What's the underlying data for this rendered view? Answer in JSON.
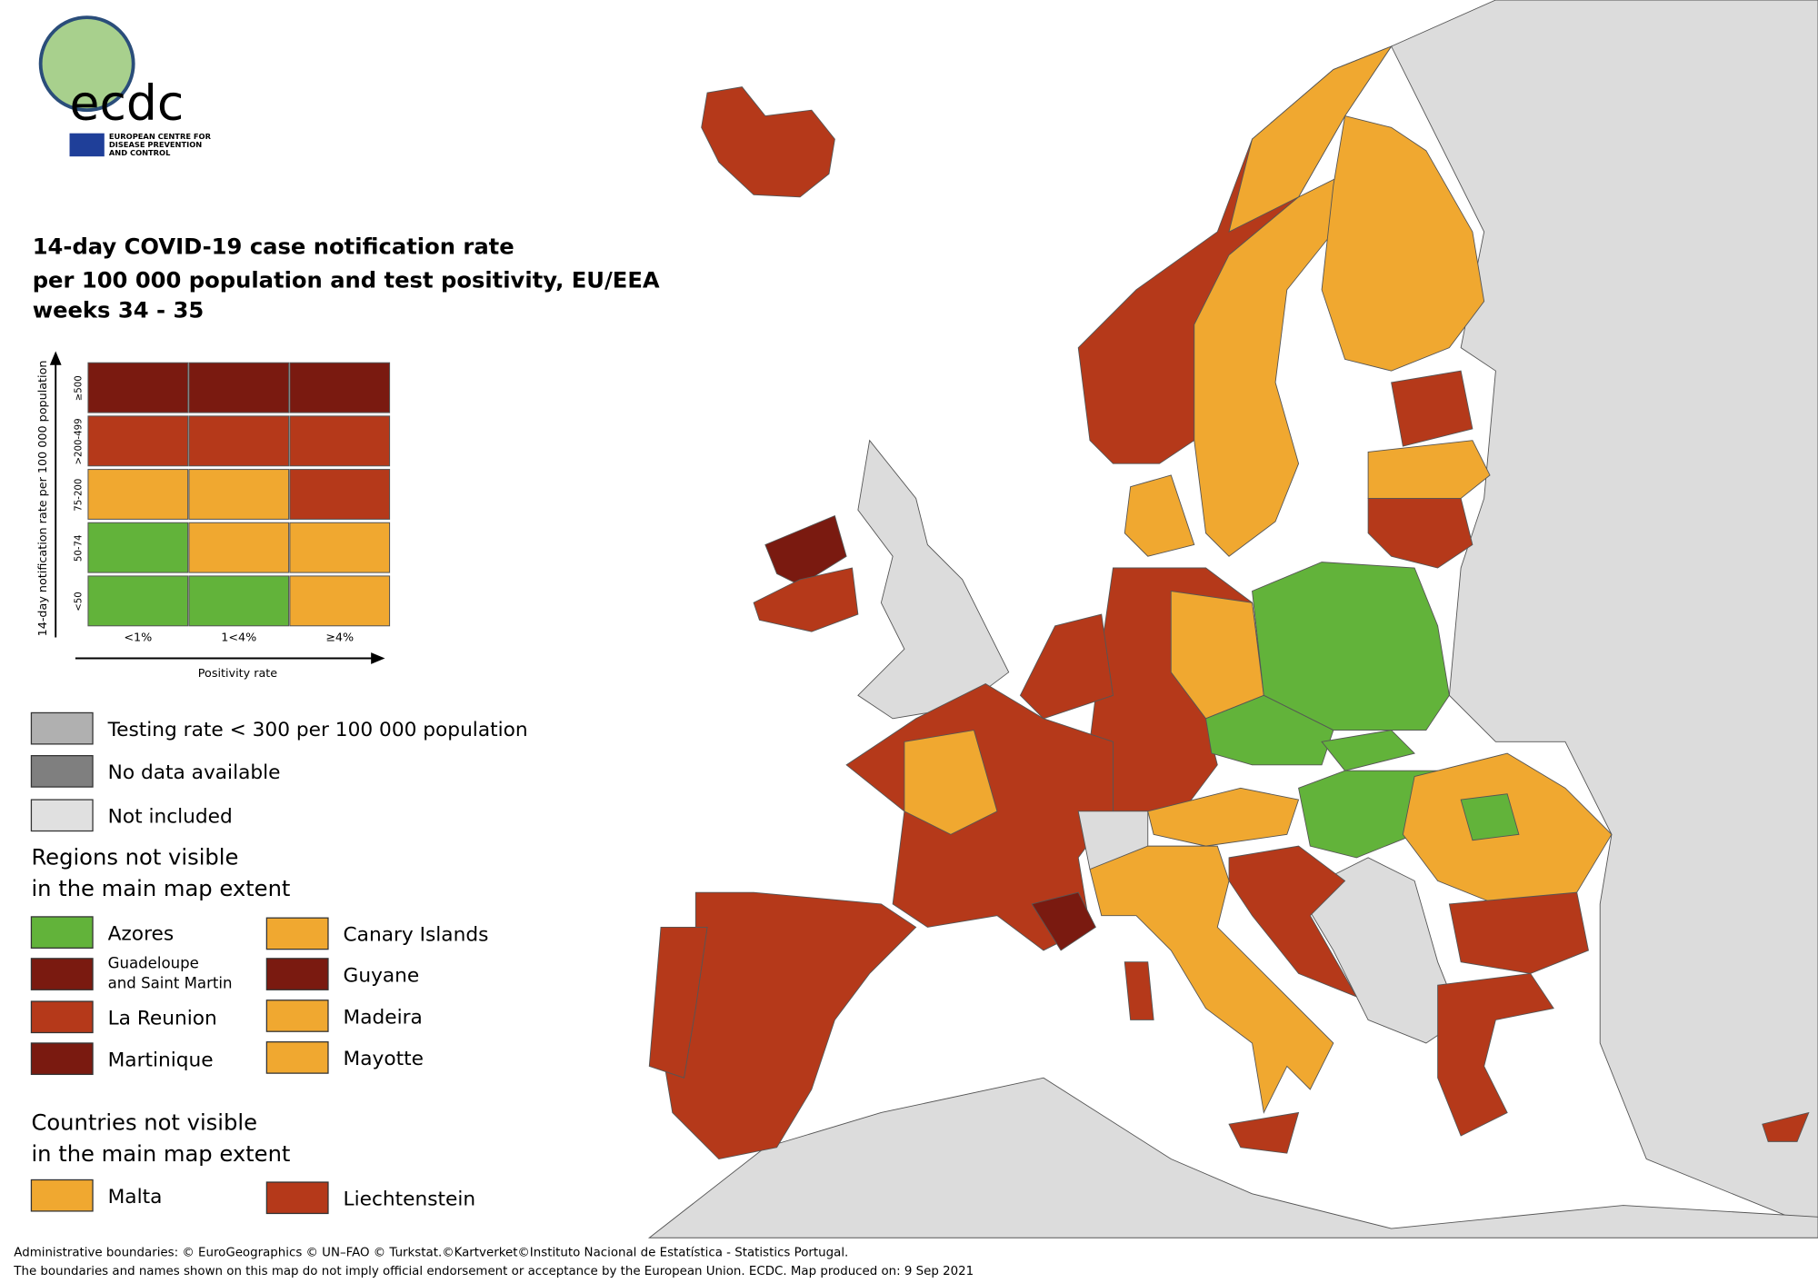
{
  "logo": {
    "name": "ecdc",
    "org_lines": [
      "EUROPEAN CENTRE FOR",
      "DISEASE PREVENTION",
      "AND CONTROL"
    ]
  },
  "header": {
    "title_lines": [
      "14-day COVID-19 case notification rate",
      "per 100 000 population and test positivity, EU/EEA",
      "weeks 34 - 35"
    ]
  },
  "matrix": {
    "y_axis_label": "14-day notification rate per 100 000 population",
    "x_axis_label": "Positivity rate",
    "rows": [
      "≥500",
      ">200-499",
      "75-200",
      "50-74",
      "<50"
    ],
    "columns": [
      "<1%",
      "1<4%",
      "≥4%"
    ]
  },
  "legend": {
    "items": [
      "Testing rate < 300 per 100 000 population",
      "No data available",
      "Not included"
    ]
  },
  "regions": {
    "title_lines": [
      "Regions not visible",
      "in the main map extent"
    ],
    "items": [
      {
        "lines": [
          "Azores"
        ]
      },
      {
        "lines": [
          "Guadeloupe",
          "and Saint Martin"
        ]
      },
      {
        "lines": [
          "La Reunion"
        ]
      },
      {
        "lines": [
          "Martinique"
        ]
      },
      {
        "lines": [
          "Canary Islands"
        ]
      },
      {
        "lines": [
          "Guyane"
        ]
      },
      {
        "lines": [
          "Madeira"
        ]
      },
      {
        "lines": [
          "Mayotte"
        ]
      }
    ]
  },
  "countries": {
    "title_lines": [
      "Countries not visible",
      "in the main map extent"
    ],
    "items": [
      {
        "lines": [
          "Malta"
        ]
      },
      {
        "lines": [
          "Liechtenstein"
        ]
      }
    ]
  },
  "footer": [
    "Administrative boundaries: © EuroGeographics © UN–FAO © Turkstat.©Kartverket©Instituto Nacional de Estatística - Statistics Portugal.",
    "The boundaries and names shown on this map do not imply official endorsement or acceptance by the European Union. ECDC. Map produced on: 9 Sep 2021"
  ]
}
